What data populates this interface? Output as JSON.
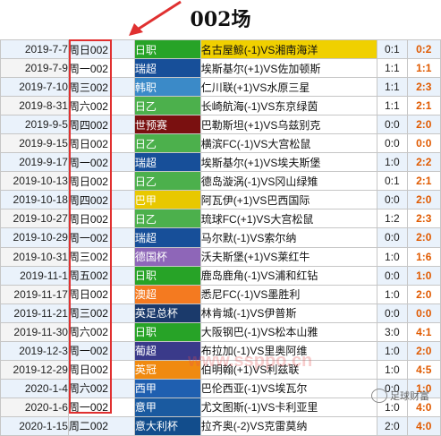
{
  "title": "002场",
  "colors": {
    "jleague1": "#2eaa2e",
    "jleague2": "#3fae3f",
    "allsvenskan": "#174f99",
    "k1": "#3b8ac8",
    "worldcup_q": "#7a1010",
    "brasil_b": "#f0d000",
    "dfb_pokal": "#8e66b8",
    "eredivisie": "#f47a20",
    "efl_cup": "#1b3a6b",
    "j1": "#2e9e2e",
    "liga_nos": "#3a3a8a",
    "fa_cup": "#f08a10",
    "la_liga": "#1f5fb0",
    "serie_a": "#1a5aa0",
    "coppa_italia": "#124d8c"
  },
  "rows": [
    {
      "date": "2019-7-7",
      "weekday": "周日002",
      "league": "日职",
      "league_color": "#27a327",
      "match": "名古屋鲸(-1)VS湘南海洋",
      "score": "0:1",
      "half": "0:2"
    },
    {
      "date": "2019-7-9",
      "weekday": "周一002",
      "league": "瑞超",
      "league_color": "#174f99",
      "match": "埃斯基尔(+1)VS佐加顿斯",
      "score": "1:1",
      "half": "1:1"
    },
    {
      "date": "2019-7-10",
      "weekday": "周三002",
      "league": "韩职",
      "league_color": "#3b8ac8",
      "match": "仁川联(+1)VS水原三星",
      "score": "1:1",
      "half": "2:3"
    },
    {
      "date": "2019-8-31",
      "weekday": "周六002",
      "league": "日乙",
      "league_color": "#4cb04c",
      "match": "长崎航海(-1)VS东京绿茵",
      "score": "1:1",
      "half": "2:1"
    },
    {
      "date": "2019-9-5",
      "weekday": "周四002",
      "league": "世预赛",
      "league_color": "#7a1010",
      "match": "巴勒斯坦(+1)VS乌兹别克",
      "score": "0:0",
      "half": "2:0"
    },
    {
      "date": "2019-9-15",
      "weekday": "周日002",
      "league": "日乙",
      "league_color": "#4cb04c",
      "match": "横滨FC(-1)VS大宫松鼠",
      "score": "0:0",
      "half": "0:0"
    },
    {
      "date": "2019-9-17",
      "weekday": "周一002",
      "league": "瑞超",
      "league_color": "#174f99",
      "match": "埃斯基尔(+1)VS埃夫斯堡",
      "score": "1:0",
      "half": "2:2"
    },
    {
      "date": "2019-10-13",
      "weekday": "周日002",
      "league": "日乙",
      "league_color": "#4cb04c",
      "match": "德岛漩涡(-1)VS冈山绿雉",
      "score": "0:1",
      "half": "2:1"
    },
    {
      "date": "2019-10-18",
      "weekday": "周四002",
      "league": "巴甲",
      "league_color": "#e8c800",
      "match": "阿瓦伊(+1)VS巴西国际",
      "score": "0:0",
      "half": "2:0"
    },
    {
      "date": "2019-10-27",
      "weekday": "周日002",
      "league": "日乙",
      "league_color": "#4cb04c",
      "match": "琉球FC(+1)VS大宫松鼠",
      "score": "1:2",
      "half": "2:3"
    },
    {
      "date": "2019-10-29",
      "weekday": "周一002",
      "league": "瑞超",
      "league_color": "#174f99",
      "match": "马尔默(-1)VS索尔纳",
      "score": "0:0",
      "half": "2:0"
    },
    {
      "date": "2019-10-31",
      "weekday": "周三002",
      "league": "德国杯",
      "league_color": "#8e66b8",
      "match": "沃夫斯堡(+1)VS莱红牛",
      "score": "1:0",
      "half": "1:6"
    },
    {
      "date": "2019-11-1",
      "weekday": "周五002",
      "league": "日职",
      "league_color": "#27a327",
      "match": "鹿岛鹿角(-1)VS浦和红钻",
      "score": "0:0",
      "half": "1:0"
    },
    {
      "date": "2019-11-17",
      "weekday": "周日002",
      "league": "澳超",
      "league_color": "#f47a20",
      "match": "悉尼FC(-1)VS墨胜利",
      "score": "1:0",
      "half": "2:0"
    },
    {
      "date": "2019-11-21",
      "weekday": "周三002",
      "league": "英足总杯",
      "league_color": "#1b3a6b",
      "match": "林肯城(-1)VS伊普斯",
      "score": "0:0",
      "half": "0:0"
    },
    {
      "date": "2019-11-30",
      "weekday": "周六002",
      "league": "日职",
      "league_color": "#27a327",
      "match": "大阪钢巴(-1)VS松本山雅",
      "score": "3:0",
      "half": "4:1"
    },
    {
      "date": "2019-12-3",
      "weekday": "周一002",
      "league": "葡超",
      "league_color": "#3a3a8a",
      "match": "布拉加(-1)VS里奥阿维",
      "score": "1:0",
      "half": "2:0"
    },
    {
      "date": "2019-12-29",
      "weekday": "周日002",
      "league": "英冠",
      "league_color": "#f08a10",
      "match": "伯明翰(+1)VS利兹联",
      "score": "1:0",
      "half": "4:5"
    },
    {
      "date": "2020-1-4",
      "weekday": "周六002",
      "league": "西甲",
      "league_color": "#1f5fb0",
      "match": "巴伦西亚(-1)VS埃瓦尔",
      "score": "0:0",
      "half": "1:0"
    },
    {
      "date": "2020-1-6",
      "weekday": "周一002",
      "league": "意甲",
      "league_color": "#1a5aa0",
      "match": "尤文图斯(-1)VS卡利亚里",
      "score": "1:0",
      "half": "4:0"
    },
    {
      "date": "2020-1-15",
      "weekday": "周二002",
      "league": "意大利杯",
      "league_color": "#124d8c",
      "match": "拉齐奥(-2)VS克雷莫纳",
      "score": "2:0",
      "half": "4:0"
    }
  ],
  "match_colors": [
    "#f0d000",
    "#ffffff",
    "#ffffff",
    "#ffffff",
    "#ffffff",
    "#ffffff",
    "#ffffff",
    "#ffffff",
    "#ffffff",
    "#ffffff",
    "#ffffff",
    "#ffffff",
    "#ffffff",
    "#ffffff",
    "#ffffff",
    "#ffffff",
    "#ffffff",
    "#ffffff",
    "#ffffff",
    "#ffffff",
    "#ffffff"
  ],
  "watermark": "www.ssppo.cn",
  "wechat": "足球财富"
}
